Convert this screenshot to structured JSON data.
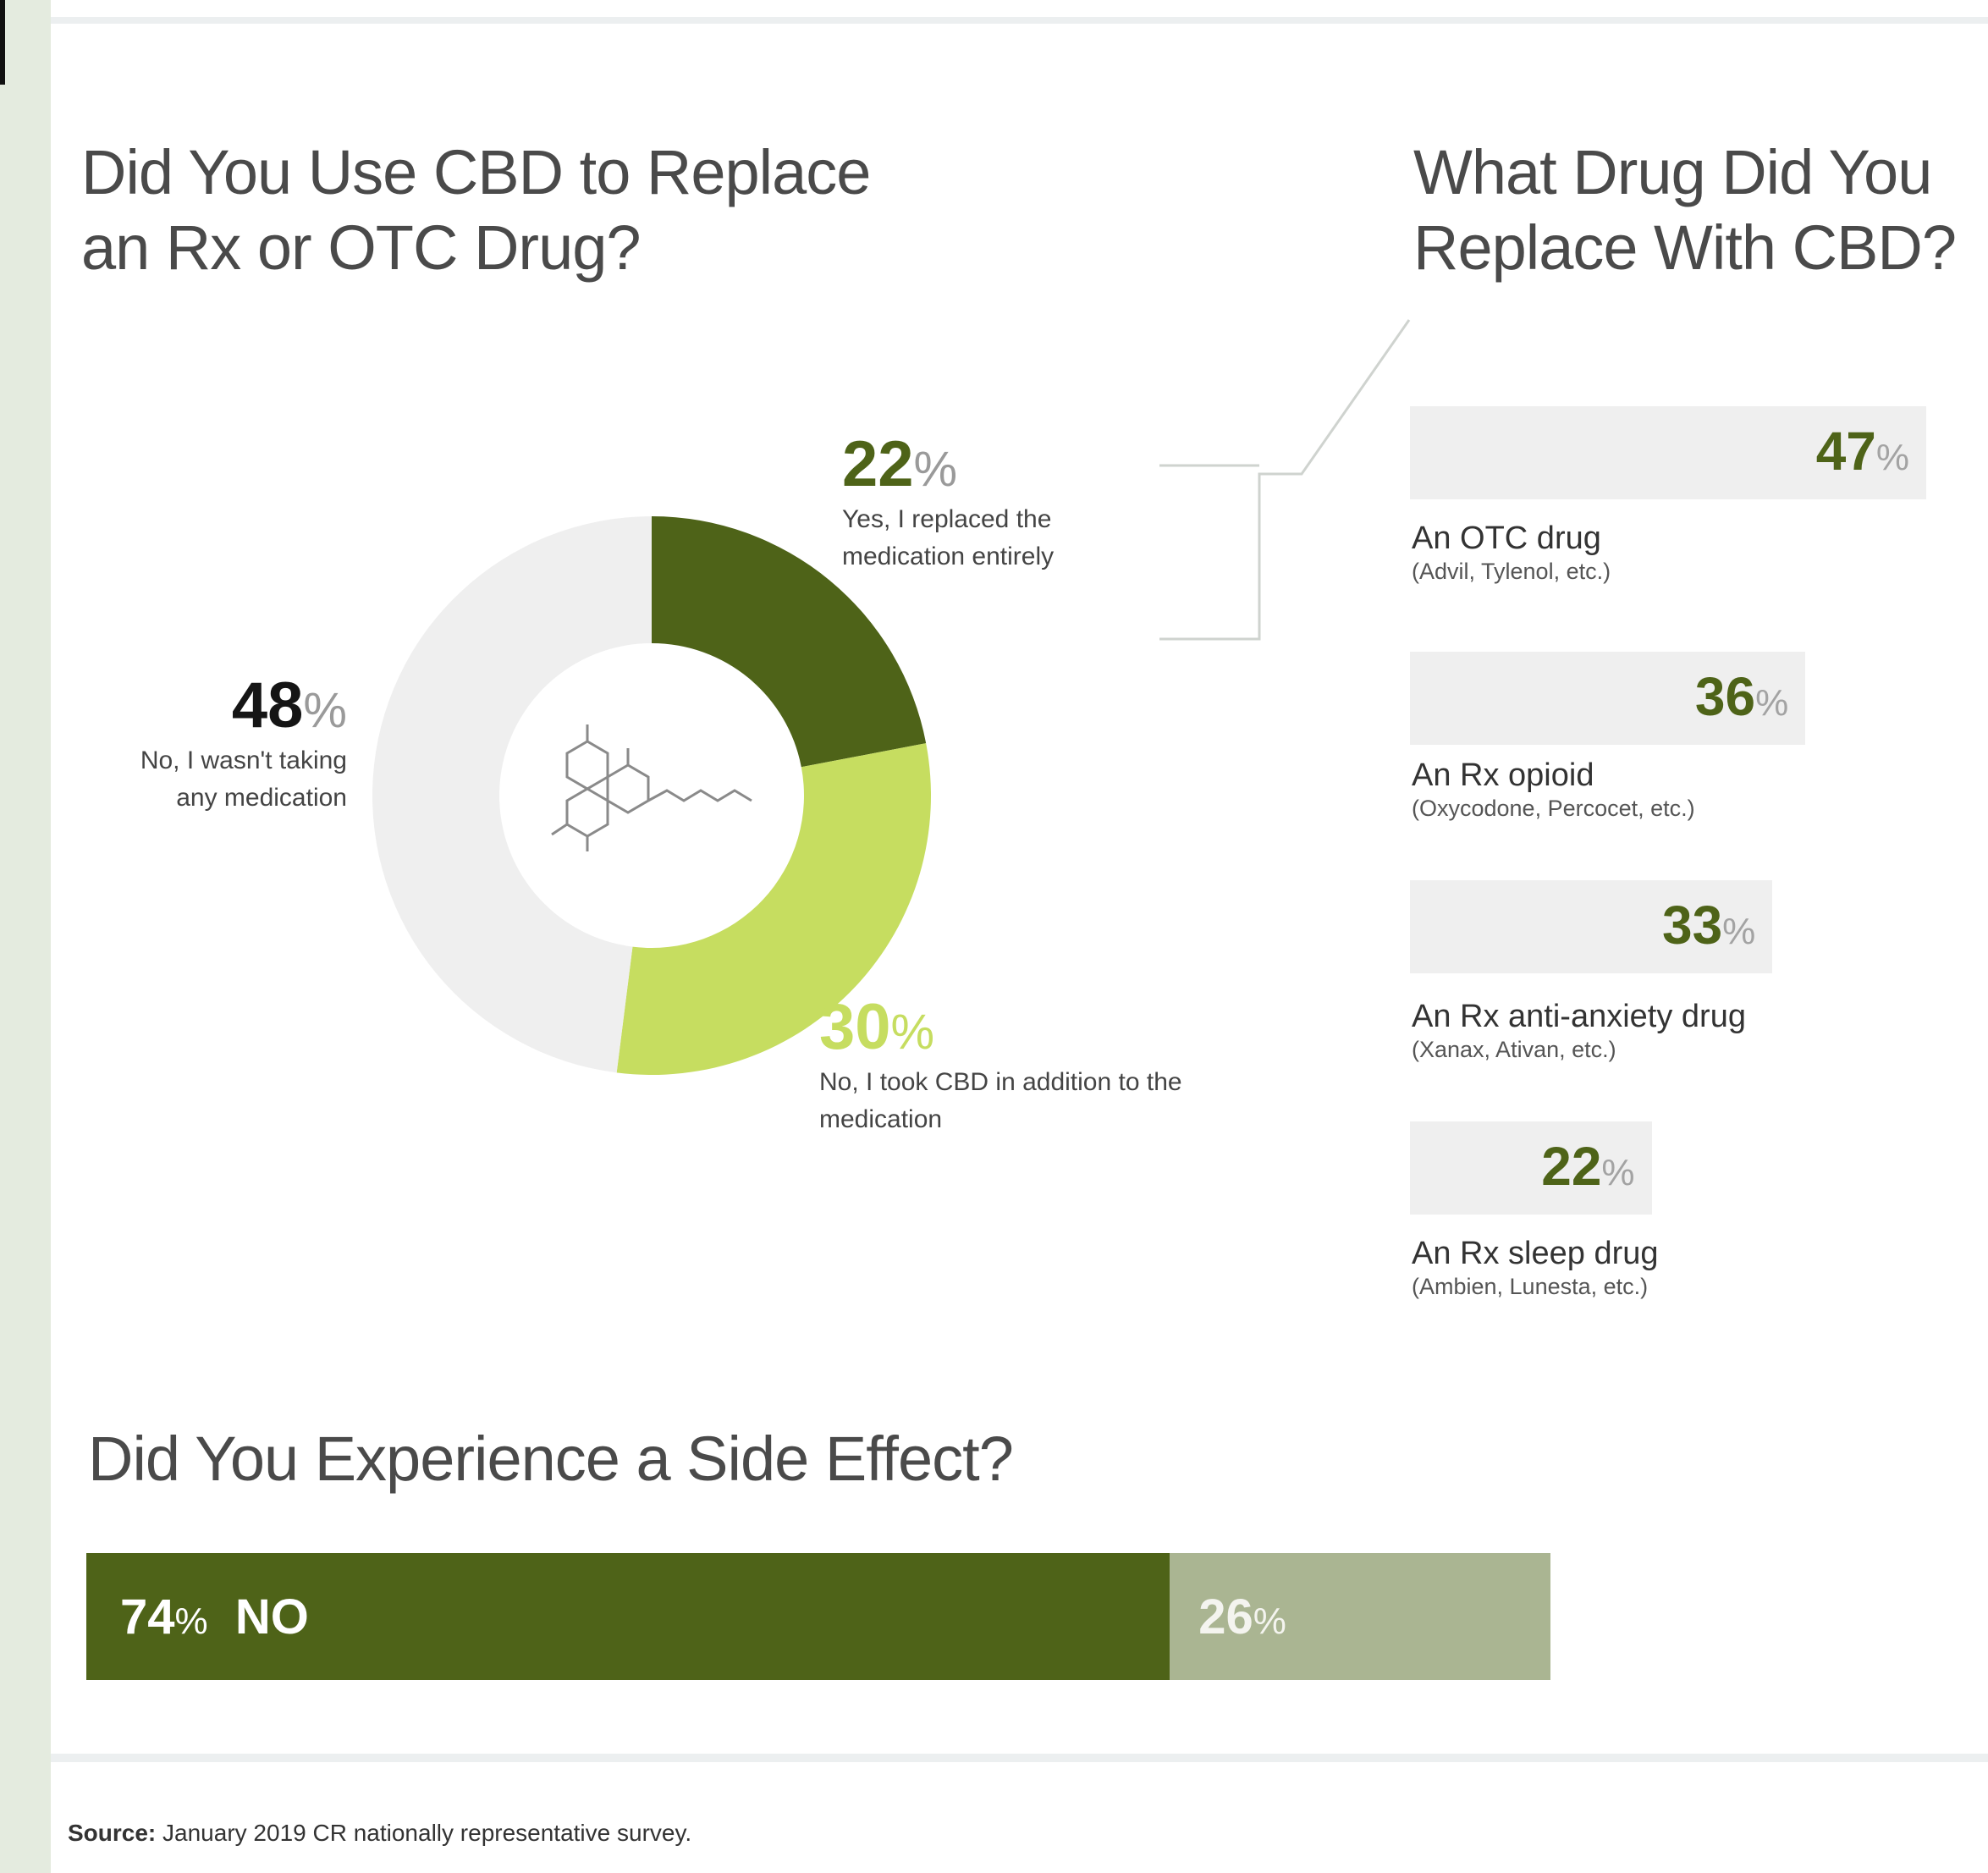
{
  "colors": {
    "dark_green": "#4e6318",
    "lime_green": "#c6dd60",
    "light_gray": "#efefef",
    "sage": "#aab592",
    "background": "#e4ebdf"
  },
  "icons": [
    "cbd-molecule-icon"
  ],
  "source": {
    "label": "Source:",
    "text": "January 2019 CR nationally representative survey."
  },
  "chart_data": [
    {
      "type": "pie",
      "title": "Did You Use CBD to Replace an Rx or OTC Drug?",
      "title_lines": [
        "Did You Use CBD to Replace",
        "an Rx or OTC Drug?"
      ],
      "slices": [
        {
          "value": 22,
          "label": "Yes, I replaced the medication entirely",
          "color": "#4e6318"
        },
        {
          "value": 30,
          "label": "No, I took CBD in addition to the medication",
          "color": "#c6dd60"
        },
        {
          "value": 48,
          "label": "No, I wasn't taking any medication",
          "color": "#efefef"
        }
      ],
      "unit": "%"
    },
    {
      "type": "bar",
      "title": "What Drug Did You Replace With CBD?",
      "title_lines": [
        "What Drug Did You",
        "Replace With CBD?"
      ],
      "categories": [
        "An OTC drug (Advil, Tylenol, etc.)",
        "An Rx opioid (Oxycodone, Percocet, etc.)",
        "An Rx anti-anxiety drug (Xanax, Ativan, etc.)",
        "An Rx sleep drug (Ambien, Lunesta, etc.)"
      ],
      "values": [
        47,
        36,
        33,
        22
      ],
      "items": [
        {
          "label": "An OTC drug",
          "sub": "(Advil, Tylenol, etc.)",
          "value": 47
        },
        {
          "label": "An Rx opioid",
          "sub": "(Oxycodone, Percocet, etc.)",
          "value": 36
        },
        {
          "label": "An Rx anti-anxiety drug",
          "sub": "(Xanax, Ativan, etc.)",
          "value": 33
        },
        {
          "label": "An Rx sleep drug",
          "sub": "(Ambien, Lunesta, etc.)",
          "value": 22
        }
      ],
      "unit": "%"
    },
    {
      "type": "bar",
      "orientation": "stacked-horizontal",
      "title": "Did You Experience a Side Effect?",
      "segments": [
        {
          "label": "NO",
          "value": 74,
          "color": "#4e6318"
        },
        {
          "label": "",
          "value": 26,
          "color": "#aab592"
        }
      ],
      "unit": "%"
    }
  ]
}
